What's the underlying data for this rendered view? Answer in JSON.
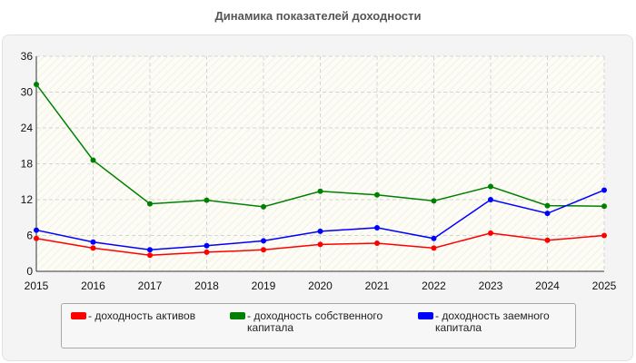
{
  "title": "Динамика показателей доходности",
  "chart_data": {
    "type": "line",
    "title": "Динамика показателей доходности",
    "xlabel": "",
    "ylabel": "",
    "x": [
      2015,
      2016,
      2017,
      2018,
      2019,
      2020,
      2021,
      2022,
      2023,
      2024,
      2025
    ],
    "ylim": [
      0,
      36
    ],
    "yticks": [
      0,
      6,
      12,
      18,
      24,
      30,
      36
    ],
    "grid": true,
    "legend_position": "bottom",
    "series": [
      {
        "name": "- доходность активов",
        "color": "#ff0000",
        "values": [
          5.5,
          3.9,
          2.7,
          3.2,
          3.6,
          4.5,
          4.7,
          3.9,
          6.4,
          5.2,
          6.0
        ]
      },
      {
        "name": "- доходность собственного капитала",
        "color": "#008000",
        "values": [
          31.3,
          18.6,
          11.3,
          11.9,
          10.8,
          13.4,
          12.8,
          11.8,
          14.2,
          11.0,
          10.9
        ]
      },
      {
        "name": "- доходность заемного капитала",
        "color": "#0000ff",
        "values": [
          6.9,
          4.9,
          3.6,
          4.3,
          5.1,
          6.7,
          7.3,
          5.5,
          12.0,
          9.7,
          13.6
        ]
      }
    ]
  }
}
